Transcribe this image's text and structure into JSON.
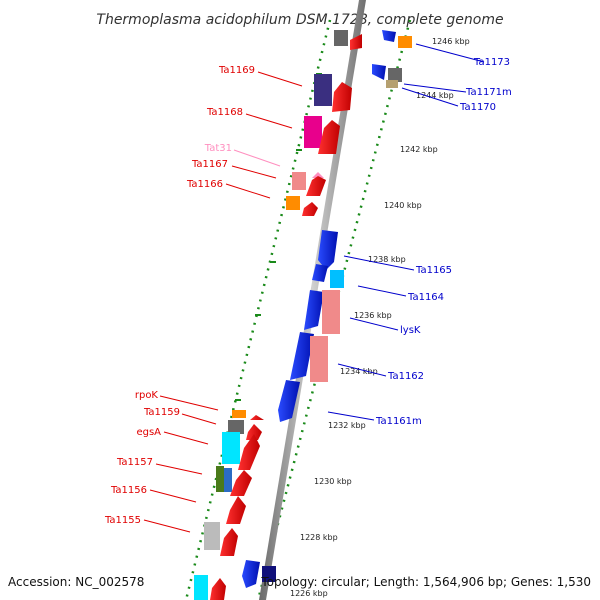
{
  "title": "Thermoplasma acidophilum DSM 1728, complete genome",
  "accession": "Accession: NC_002578",
  "topology": "Topology: circular; Length: 1,564,906 bp; Genes: 1,530",
  "kbp_ticks": [
    {
      "label": "1246 kbp"
    },
    {
      "label": "1244 kbp"
    },
    {
      "label": "1242 kbp"
    },
    {
      "label": "1240 kbp"
    },
    {
      "label": "1238 kbp"
    },
    {
      "label": "1236 kbp"
    },
    {
      "label": "1234 kbp"
    },
    {
      "label": "1232 kbp"
    },
    {
      "label": "1230 kbp"
    },
    {
      "label": "1228 kbp"
    },
    {
      "label": "1226 kbp"
    }
  ],
  "left_labels": [
    {
      "text": "Ta1169",
      "color": "#e00000"
    },
    {
      "text": "Ta1168",
      "color": "#e00000"
    },
    {
      "text": "Tat31",
      "color": "#ff8fbf"
    },
    {
      "text": "Ta1167",
      "color": "#e00000"
    },
    {
      "text": "Ta1166",
      "color": "#e00000"
    },
    {
      "text": "rpoK",
      "color": "#e00000"
    },
    {
      "text": "Ta1159",
      "color": "#e00000"
    },
    {
      "text": "egsA",
      "color": "#e00000"
    },
    {
      "text": "Ta1157",
      "color": "#e00000"
    },
    {
      "text": "Ta1156",
      "color": "#e00000"
    },
    {
      "text": "Ta1155",
      "color": "#e00000"
    }
  ],
  "right_labels": [
    {
      "text": "Ta1173",
      "color": "#0000cc"
    },
    {
      "text": "Ta1171m",
      "color": "#0000cc"
    },
    {
      "text": "Ta1170",
      "color": "#0000cc"
    },
    {
      "text": "Ta1165",
      "color": "#0000cc"
    },
    {
      "text": "Ta1164",
      "color": "#0000cc"
    },
    {
      "text": "lysK",
      "color": "#0000cc"
    },
    {
      "text": "Ta1162",
      "color": "#0000cc"
    },
    {
      "text": "Ta1161m",
      "color": "#0000cc"
    }
  ],
  "colors": {
    "forward_gene": "#ff0000",
    "reverse_gene": "#0000ff",
    "backbone": "#9a9a9a",
    "gc_dots": "#1a8a1a"
  }
}
